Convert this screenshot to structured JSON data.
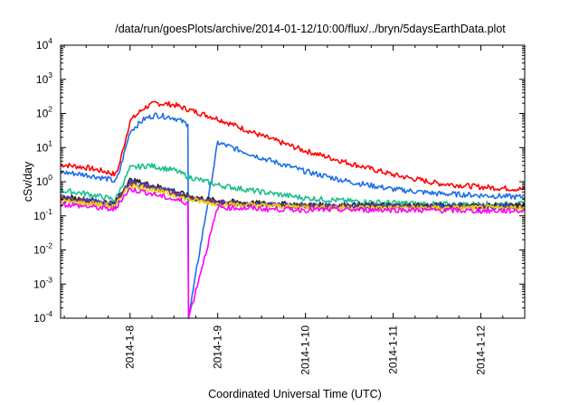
{
  "chart_data": {
    "type": "line",
    "title": "/data/run/goesPlots/archive/2014-01-12/10:00/flux/../bryn/5daysEarthData.plot",
    "xlabel": "Coordinated Universal Time (UTC)",
    "ylabel": "cSv/day",
    "yscale": "log",
    "ylim_exponent": [
      -4,
      4
    ],
    "y_tick_base": "10",
    "y_tick_exponents": [
      "-4",
      "-3",
      "-2",
      "-1",
      "0",
      "1",
      "2",
      "3",
      "4"
    ],
    "xlim": [
      "2014-01-07 05:00",
      "2014-01-12 12:00"
    ],
    "x_ticks": [
      "2014-1-8",
      "2014-1-9",
      "2014-1-10",
      "2014-1-11",
      "2014-1-12"
    ],
    "grid": false,
    "legend": "none",
    "series": [
      {
        "color": "#ff0000",
        "x": [
          "2014-01-07 05:00",
          "2014-01-07 12:00",
          "2014-01-07 18:00",
          "2014-01-07 20:00",
          "2014-01-07 21:00",
          "2014-01-08 00:00",
          "2014-01-08 04:00",
          "2014-01-08 07:00",
          "2014-01-08 12:00",
          "2014-01-08 16:00",
          "2014-01-09 00:00",
          "2014-01-09 12:00",
          "2014-01-10 00:00",
          "2014-01-10 12:00",
          "2014-01-11 00:00",
          "2014-01-11 12:00",
          "2014-01-12 00:00",
          "2014-01-12 12:00"
        ],
        "values": [
          3.2,
          2.6,
          1.9,
          1.6,
          3.0,
          60,
          150,
          200,
          180,
          130,
          70,
          22,
          8,
          3.5,
          1.6,
          0.9,
          0.7,
          0.6
        ]
      },
      {
        "color": "#1e6fe8",
        "x": [
          "2014-01-07 05:00",
          "2014-01-07 12:00",
          "2014-01-07 18:00",
          "2014-01-07 20:00",
          "2014-01-07 21:00",
          "2014-01-08 00:00",
          "2014-01-08 04:00",
          "2014-01-08 07:00",
          "2014-01-08 12:00",
          "2014-01-08 15:50",
          "2014-01-08 16:00",
          "2014-01-09 00:00",
          "2014-01-09 12:00",
          "2014-01-10 00:00",
          "2014-01-10 12:00",
          "2014-01-11 00:00",
          "2014-01-11 12:00",
          "2014-01-12 00:00",
          "2014-01-12 12:00"
        ],
        "values": [
          1.9,
          1.6,
          1.2,
          1.0,
          1.8,
          30,
          70,
          90,
          75,
          48,
          0.0001,
          14,
          5,
          2.0,
          1.0,
          0.6,
          0.45,
          0.4,
          0.35
        ]
      },
      {
        "color": "#1abf8f",
        "x": [
          "2014-01-07 05:00",
          "2014-01-07 12:00",
          "2014-01-07 18:00",
          "2014-01-07 20:00",
          "2014-01-07 21:00",
          "2014-01-08 00:00",
          "2014-01-08 05:00",
          "2014-01-08 12:00",
          "2014-01-08 16:00",
          "2014-01-09 00:00",
          "2014-01-09 12:00",
          "2014-01-10 00:00",
          "2014-01-10 12:00",
          "2014-01-11 00:00",
          "2014-01-11 12:00",
          "2014-01-12 00:00",
          "2014-01-12 12:00"
        ],
        "values": [
          0.55,
          0.45,
          0.33,
          0.3,
          0.5,
          2.5,
          3.0,
          2.2,
          1.4,
          0.8,
          0.5,
          0.33,
          0.27,
          0.24,
          0.22,
          0.22,
          0.22
        ]
      },
      {
        "color": "#222222",
        "x": [
          "2014-01-07 05:00",
          "2014-01-07 12:00",
          "2014-01-07 18:00",
          "2014-01-07 20:00",
          "2014-01-07 21:00",
          "2014-01-08 00:00",
          "2014-01-08 04:00",
          "2014-01-08 12:00",
          "2014-01-08 16:00",
          "2014-01-09 00:00",
          "2014-01-09 12:00",
          "2014-01-10 00:00",
          "2014-01-11 00:00",
          "2014-01-12 00:00",
          "2014-01-12 12:00"
        ],
        "values": [
          0.35,
          0.3,
          0.25,
          0.23,
          0.4,
          1.1,
          0.9,
          0.55,
          0.38,
          0.27,
          0.23,
          0.21,
          0.2,
          0.2,
          0.2
        ]
      },
      {
        "color": "#3050c0",
        "x": [
          "2014-01-07 05:00",
          "2014-01-07 12:00",
          "2014-01-07 18:00",
          "2014-01-07 20:00",
          "2014-01-07 21:00",
          "2014-01-08 00:00",
          "2014-01-08 04:00",
          "2014-01-08 12:00",
          "2014-01-08 16:00",
          "2014-01-09 00:00",
          "2014-01-09 12:00",
          "2014-01-10 00:00",
          "2014-01-11 00:00",
          "2014-01-12 00:00",
          "2014-01-12 12:00"
        ],
        "values": [
          0.32,
          0.28,
          0.23,
          0.21,
          0.36,
          1.0,
          0.8,
          0.5,
          0.35,
          0.25,
          0.22,
          0.2,
          0.19,
          0.19,
          0.19
        ]
      },
      {
        "color": "#8b2a6e",
        "x": [
          "2014-01-07 05:00",
          "2014-01-07 12:00",
          "2014-01-07 18:00",
          "2014-01-07 20:00",
          "2014-01-07 21:00",
          "2014-01-08 00:00",
          "2014-01-08 04:00",
          "2014-01-08 12:00",
          "2014-01-08 16:00",
          "2014-01-09 00:00",
          "2014-01-09 12:00",
          "2014-01-10 00:00",
          "2014-01-11 00:00",
          "2014-01-12 00:00",
          "2014-01-12 12:00"
        ],
        "values": [
          0.3,
          0.26,
          0.22,
          0.2,
          0.33,
          0.9,
          0.75,
          0.45,
          0.33,
          0.24,
          0.21,
          0.19,
          0.18,
          0.18,
          0.18
        ]
      },
      {
        "color": "#e8d800",
        "x": [
          "2014-01-07 05:00",
          "2014-01-07 12:00",
          "2014-01-07 18:00",
          "2014-01-07 20:00",
          "2014-01-07 21:00",
          "2014-01-08 00:00",
          "2014-01-08 04:00",
          "2014-01-08 12:00",
          "2014-01-08 16:00",
          "2014-01-09 00:00",
          "2014-01-09 12:00",
          "2014-01-10 00:00",
          "2014-01-11 00:00",
          "2014-01-12 00:00",
          "2014-01-12 12:00"
        ],
        "values": [
          0.27,
          0.23,
          0.2,
          0.18,
          0.3,
          0.8,
          0.65,
          0.4,
          0.3,
          0.22,
          0.2,
          0.18,
          0.17,
          0.17,
          0.17
        ]
      },
      {
        "color": "#ff00ff",
        "x": [
          "2014-01-07 05:00",
          "2014-01-07 12:00",
          "2014-01-07 18:00",
          "2014-01-07 20:00",
          "2014-01-07 21:00",
          "2014-01-08 00:00",
          "2014-01-08 04:00",
          "2014-01-08 12:00",
          "2014-01-08 15:50",
          "2014-01-08 16:00",
          "2014-01-09 00:00",
          "2014-01-09 12:00",
          "2014-01-10 00:00",
          "2014-01-11 00:00",
          "2014-01-12 00:00",
          "2014-01-12 12:00"
        ],
        "values": [
          0.22,
          0.19,
          0.16,
          0.15,
          0.25,
          0.6,
          0.5,
          0.3,
          0.24,
          0.0001,
          0.18,
          0.16,
          0.15,
          0.15,
          0.14,
          0.14
        ]
      }
    ]
  }
}
